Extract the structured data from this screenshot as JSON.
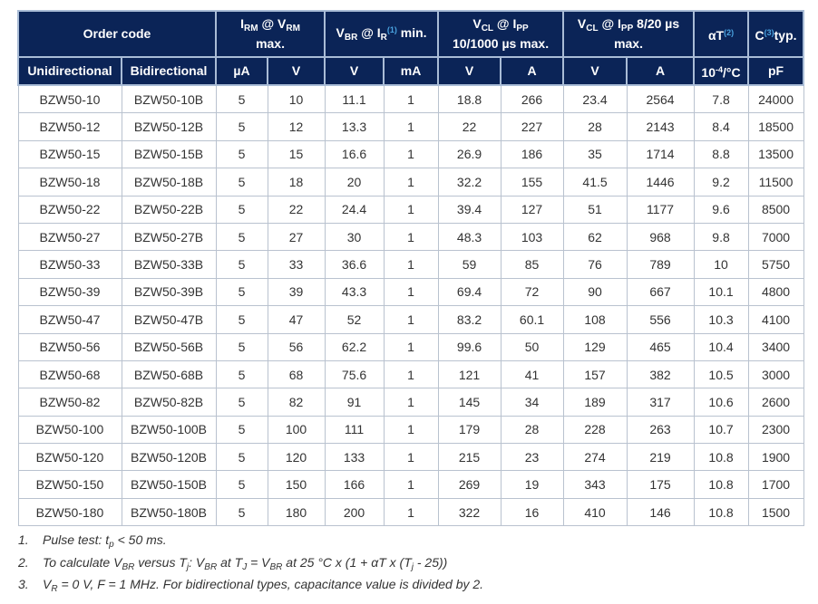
{
  "header_row1": [
    {
      "id": "order-code",
      "colspan": 2,
      "parts": [
        {
          "t": "Order code"
        }
      ]
    },
    {
      "id": "irm",
      "colspan": 2,
      "parts": [
        {
          "t": "I"
        },
        {
          "sub": "RM"
        },
        {
          "t": " @ V"
        },
        {
          "sub": "RM"
        },
        {
          "br": true
        },
        {
          "t": "max."
        }
      ]
    },
    {
      "id": "vbr",
      "colspan": 2,
      "parts": [
        {
          "t": "V"
        },
        {
          "sub": "BR"
        },
        {
          "t": " @ I"
        },
        {
          "sub": "R"
        },
        {
          "ref": "(1)"
        },
        {
          "t": " min."
        }
      ]
    },
    {
      "id": "vcl-10-1000",
      "colspan": 2,
      "parts": [
        {
          "t": "V"
        },
        {
          "sub": "CL"
        },
        {
          "t": " @ I"
        },
        {
          "sub": "PP"
        },
        {
          "br": true
        },
        {
          "t": "10/1000 µs max."
        }
      ]
    },
    {
      "id": "vcl-8-20",
      "colspan": 2,
      "parts": [
        {
          "t": "V"
        },
        {
          "sub": "CL"
        },
        {
          "t": " @ I"
        },
        {
          "sub": "PP"
        },
        {
          "t": " 8/20 µs"
        },
        {
          "br": true
        },
        {
          "t": "max."
        }
      ]
    },
    {
      "id": "alpha-t",
      "colspan": 1,
      "parts": [
        {
          "t": "αT"
        },
        {
          "ref": "(2)"
        }
      ]
    },
    {
      "id": "capacitance",
      "colspan": 1,
      "parts": [
        {
          "t": "C"
        },
        {
          "ref": "(3)"
        },
        {
          "t": "typ."
        }
      ]
    }
  ],
  "header_row2": [
    {
      "parts": [
        {
          "t": "Unidirectional"
        }
      ]
    },
    {
      "parts": [
        {
          "t": "Bidirectional"
        }
      ]
    },
    {
      "parts": [
        {
          "t": "µA"
        }
      ]
    },
    {
      "parts": [
        {
          "t": "V"
        }
      ]
    },
    {
      "parts": [
        {
          "t": "V"
        }
      ]
    },
    {
      "parts": [
        {
          "t": "mA"
        }
      ]
    },
    {
      "parts": [
        {
          "t": "V"
        }
      ]
    },
    {
      "parts": [
        {
          "t": "A"
        }
      ]
    },
    {
      "parts": [
        {
          "t": "V"
        }
      ]
    },
    {
      "parts": [
        {
          "t": "A"
        }
      ]
    },
    {
      "parts": [
        {
          "t": "10"
        },
        {
          "sup": "-4"
        },
        {
          "t": "/°C"
        }
      ]
    },
    {
      "parts": [
        {
          "t": "pF"
        }
      ]
    }
  ],
  "rows": [
    [
      "BZW50-10",
      "BZW50-10B",
      "5",
      "10",
      "11.1",
      "1",
      "18.8",
      "266",
      "23.4",
      "2564",
      "7.8",
      "24000"
    ],
    [
      "BZW50-12",
      "BZW50-12B",
      "5",
      "12",
      "13.3",
      "1",
      "22",
      "227",
      "28",
      "2143",
      "8.4",
      "18500"
    ],
    [
      "BZW50-15",
      "BZW50-15B",
      "5",
      "15",
      "16.6",
      "1",
      "26.9",
      "186",
      "35",
      "1714",
      "8.8",
      "13500"
    ],
    [
      "BZW50-18",
      "BZW50-18B",
      "5",
      "18",
      "20",
      "1",
      "32.2",
      "155",
      "41.5",
      "1446",
      "9.2",
      "11500"
    ],
    [
      "BZW50-22",
      "BZW50-22B",
      "5",
      "22",
      "24.4",
      "1",
      "39.4",
      "127",
      "51",
      "1177",
      "9.6",
      "8500"
    ],
    [
      "BZW50-27",
      "BZW50-27B",
      "5",
      "27",
      "30",
      "1",
      "48.3",
      "103",
      "62",
      "968",
      "9.8",
      "7000"
    ],
    [
      "BZW50-33",
      "BZW50-33B",
      "5",
      "33",
      "36.6",
      "1",
      "59",
      "85",
      "76",
      "789",
      "10",
      "5750"
    ],
    [
      "BZW50-39",
      "BZW50-39B",
      "5",
      "39",
      "43.3",
      "1",
      "69.4",
      "72",
      "90",
      "667",
      "10.1",
      "4800"
    ],
    [
      "BZW50-47",
      "BZW50-47B",
      "5",
      "47",
      "52",
      "1",
      "83.2",
      "60.1",
      "108",
      "556",
      "10.3",
      "4100"
    ],
    [
      "BZW50-56",
      "BZW50-56B",
      "5",
      "56",
      "62.2",
      "1",
      "99.6",
      "50",
      "129",
      "465",
      "10.4",
      "3400"
    ],
    [
      "BZW50-68",
      "BZW50-68B",
      "5",
      "68",
      "75.6",
      "1",
      "121",
      "41",
      "157",
      "382",
      "10.5",
      "3000"
    ],
    [
      "BZW50-82",
      "BZW50-82B",
      "5",
      "82",
      "91",
      "1",
      "145",
      "34",
      "189",
      "317",
      "10.6",
      "2600"
    ],
    [
      "BZW50-100",
      "BZW50-100B",
      "5",
      "100",
      "111",
      "1",
      "179",
      "28",
      "228",
      "263",
      "10.7",
      "2300"
    ],
    [
      "BZW50-120",
      "BZW50-120B",
      "5",
      "120",
      "133",
      "1",
      "215",
      "23",
      "274",
      "219",
      "10.8",
      "1900"
    ],
    [
      "BZW50-150",
      "BZW50-150B",
      "5",
      "150",
      "166",
      "1",
      "269",
      "19",
      "343",
      "175",
      "10.8",
      "1700"
    ],
    [
      "BZW50-180",
      "BZW50-180B",
      "5",
      "180",
      "200",
      "1",
      "322",
      "16",
      "410",
      "146",
      "10.8",
      "1500"
    ]
  ],
  "footnotes": [
    {
      "num": "1.",
      "parts": [
        {
          "t": "Pulse test: t"
        },
        {
          "sub": "p"
        },
        {
          "t": " < 50 ms."
        }
      ]
    },
    {
      "num": "2.",
      "parts": [
        {
          "t": "To calculate V"
        },
        {
          "sub": "BR"
        },
        {
          "t": " versus T"
        },
        {
          "sub": "j"
        },
        {
          "t": ": V"
        },
        {
          "sub": "BR"
        },
        {
          "t": " at T"
        },
        {
          "sub": "J"
        },
        {
          "t": " = V"
        },
        {
          "sub": "BR"
        },
        {
          "t": " at 25 °C x (1 + αT x (T"
        },
        {
          "sub": "j"
        },
        {
          "t": " - 25))"
        }
      ]
    },
    {
      "num": "3.",
      "parts": [
        {
          "t": "V"
        },
        {
          "sub": "R"
        },
        {
          "t": " = 0 V, F = 1 MHz. For bidirectional types, capacitance value is divided by 2."
        }
      ]
    }
  ],
  "colors": {
    "header_bg": "#0b2457",
    "reference_superscript": "#4aa3e0",
    "border": "#b9c2cf"
  }
}
